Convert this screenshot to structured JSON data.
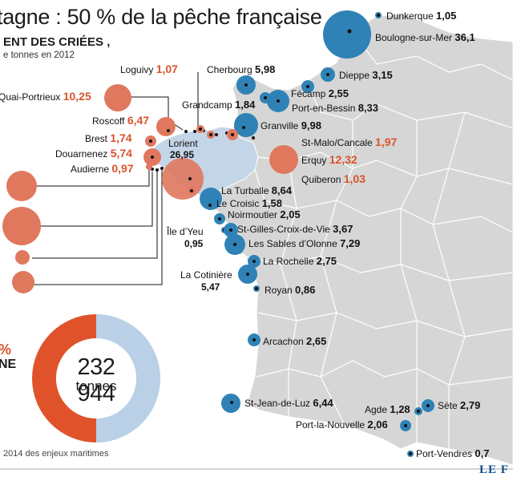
{
  "title": "tagne : 50 % de la pêche française",
  "subtitle": "ENT DES CRIÉES ,",
  "unit": "e tonnes en 2012",
  "source": "2014 des enjeux maritimes",
  "brand": "LE F",
  "donut": {
    "total": "232 944",
    "unit_label": "tonnes",
    "left_label": "NE",
    "pct_label": "%",
    "colors": {
      "red": "#e0532a",
      "blue": "#b9d0e6"
    }
  },
  "colors": {
    "blue_port": "#2f82b5",
    "red_port": "#e0785e",
    "land": "#d6d6d6",
    "brittany": "#c5d5e8"
  },
  "ports": [
    {
      "name": "Dunkerque",
      "value": "1,05",
      "color": "blue"
    },
    {
      "name": "Boulogne-sur-Mer",
      "value": "36,1",
      "color": "blue"
    },
    {
      "name": "Dieppe",
      "value": "3,15",
      "color": "blue"
    },
    {
      "name": "Fécamp",
      "value": "2,55",
      "color": "blue"
    },
    {
      "name": "Cherbourg",
      "value": "5,98",
      "color": "blue"
    },
    {
      "name": "Grandcamp",
      "value": "1,84",
      "color": "blue"
    },
    {
      "name": "Port-en-Bessin",
      "value": "8,33",
      "color": "blue"
    },
    {
      "name": "Granville",
      "value": "9,98",
      "color": "blue"
    },
    {
      "name": "Loguivy",
      "value": "1,07",
      "color": "red"
    },
    {
      "name": "Quai-Portrieux",
      "value": "10,25",
      "color": "red"
    },
    {
      "name": "Roscoff",
      "value": "6,47",
      "color": "red"
    },
    {
      "name": "Brest",
      "value": "1,74",
      "color": "red"
    },
    {
      "name": "Douarnenez",
      "value": "5,74",
      "color": "red"
    },
    {
      "name": "Audierne",
      "value": "0,97",
      "color": "red"
    },
    {
      "name": "Lorient",
      "value": "26,95",
      "color": "red"
    },
    {
      "name": "St-Malo/Cancale",
      "value": "1,97",
      "color": "red"
    },
    {
      "name": "Erquy",
      "value": "12,32",
      "color": "red"
    },
    {
      "name": "Quiberon",
      "value": "1,03",
      "color": "red"
    },
    {
      "name": "La Turballe",
      "value": "8,64",
      "color": "blue"
    },
    {
      "name": "Le Croisic",
      "value": "1,58",
      "color": "blue"
    },
    {
      "name": "Noirmoutier",
      "value": "2,05",
      "color": "blue"
    },
    {
      "name": "Île d’Yeu",
      "value": "0,95",
      "color": "blue"
    },
    {
      "name": "St-Gilles-Croix-de-Vie",
      "value": "3,67",
      "color": "blue"
    },
    {
      "name": "Les Sables d’Olonne",
      "value": "7,29",
      "color": "blue"
    },
    {
      "name": "La Rochelle",
      "value": "2,75",
      "color": "blue"
    },
    {
      "name": "La Cotinière",
      "value": "5,47",
      "color": "blue"
    },
    {
      "name": "Royan",
      "value": "0,86",
      "color": "blue"
    },
    {
      "name": "Arcachon",
      "value": "2,65",
      "color": "blue"
    },
    {
      "name": "St-Jean-de-Luz",
      "value": "6,44",
      "color": "blue"
    },
    {
      "name": "Agde",
      "value": "1,28",
      "color": "blue"
    },
    {
      "name": "Sète",
      "value": "2,79",
      "color": "blue"
    },
    {
      "name": "Port-la-Nouvelle",
      "value": "2,06",
      "color": "blue"
    },
    {
      "name": "Port-Vendres",
      "value": "0,7",
      "color": "blue"
    }
  ]
}
